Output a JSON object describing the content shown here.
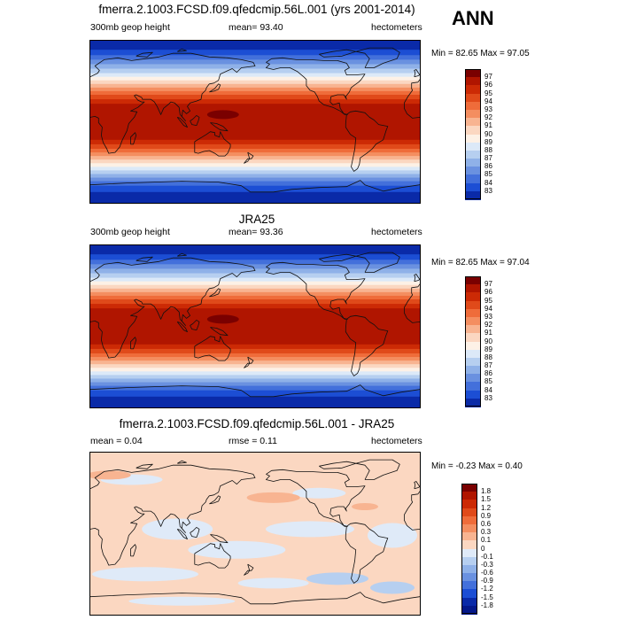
{
  "season": "ANN",
  "panels": [
    {
      "id": "model",
      "title": "fmerra.2.1003.FCSD.f09.qfedcmip.56L.001 (yrs 2001-2014)",
      "left": "300mb geop height",
      "center": "mean=  93.40",
      "right": "hectometers",
      "minmax": "Min =  82.65 Max =  97.05",
      "colorbar_labels": [
        "97",
        "96",
        "95",
        "94",
        "93",
        "92",
        "91",
        "90",
        "89",
        "88",
        "87",
        "86",
        "85",
        "84",
        "83"
      ],
      "colorbar_colors": [
        "#7a0000",
        "#b01500",
        "#cc2a05",
        "#e04a1a",
        "#ef6c3a",
        "#f48e60",
        "#f8b491",
        "#fbd7c1",
        "#fdf1e6",
        "#dce9f8",
        "#b6cff0",
        "#8fb1e8",
        "#6a91e0",
        "#4370db",
        "#1c4ed4",
        "#0a2aa8"
      ],
      "palette": "height"
    },
    {
      "id": "obs",
      "title": "JRA25",
      "left": "300mb geop height",
      "center": "mean=  93.36",
      "right": "hectometers",
      "minmax": "Min =  82.65 Max =  97.04",
      "colorbar_labels": [
        "97",
        "96",
        "95",
        "94",
        "93",
        "92",
        "91",
        "90",
        "89",
        "88",
        "87",
        "86",
        "85",
        "84",
        "83"
      ],
      "colorbar_colors": [
        "#7a0000",
        "#b01500",
        "#cc2a05",
        "#e04a1a",
        "#ef6c3a",
        "#f48e60",
        "#f8b491",
        "#fbd7c1",
        "#fdf1e6",
        "#dce9f8",
        "#b6cff0",
        "#8fb1e8",
        "#6a91e0",
        "#4370db",
        "#1c4ed4",
        "#0a2aa8"
      ],
      "palette": "height"
    },
    {
      "id": "diff",
      "title": "fmerra.2.1003.FCSD.f09.qfedcmip.56L.001 - JRA25",
      "left": "mean =   0.04",
      "center": "rmse =   0.11",
      "right": "hectometers",
      "minmax": "Min = -0.23 Max =   0.40",
      "colorbar_labels": [
        "1.8",
        "1.5",
        "1.2",
        "0.9",
        "0.6",
        "0.3",
        "0.1",
        "0",
        "-0.1",
        "-0.3",
        "-0.6",
        "-0.9",
        "-1.2",
        "-1.5",
        "-1.8"
      ],
      "colorbar_colors": [
        "#7a0000",
        "#b01500",
        "#cc2a05",
        "#e04a1a",
        "#ef6c3a",
        "#f48e60",
        "#f8b491",
        "#fbd7c1",
        "#dfeaf8",
        "#b6cff0",
        "#8fb1e8",
        "#6a91e0",
        "#4370db",
        "#1c4ed4",
        "#0a2aa8",
        "#04188a"
      ],
      "palette": "diff"
    }
  ]
}
